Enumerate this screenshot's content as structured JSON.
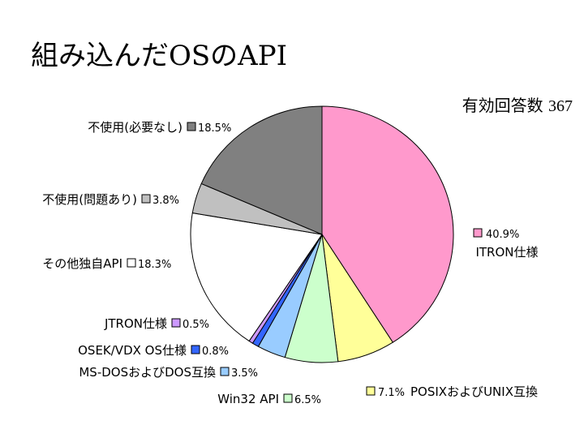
{
  "chart_data": {
    "type": "pie",
    "title": "組み込んだOSのAPI",
    "subtitle": "有効回答数 367",
    "legend": "inline-labels",
    "slices": [
      {
        "label": "ITRON仕様",
        "value": 40.9,
        "value_label": "40.9%",
        "color": "#ff99cc"
      },
      {
        "label": "POSIXおよびUNIX互換",
        "value": 7.1,
        "value_label": "7.1%",
        "color": "#ffff99"
      },
      {
        "label": "Win32 API",
        "value": 6.5,
        "value_label": "6.5%",
        "color": "#ccffcc"
      },
      {
        "label": "MS-DOSおよびDOS互換",
        "value": 3.5,
        "value_label": "3.5%",
        "color": "#99ccff"
      },
      {
        "label": "OSEK/VDX OS仕様",
        "value": 0.8,
        "value_label": "0.8%",
        "color": "#3366ff"
      },
      {
        "label": "JTRON仕様",
        "value": 0.5,
        "value_label": "0.5%",
        "color": "#cc99ff"
      },
      {
        "label": "その他独自API",
        "value": 18.3,
        "value_label": "18.3%",
        "color": "#ffffff"
      },
      {
        "label": "不使用(問題あり)",
        "value": 3.8,
        "value_label": "3.8%",
        "color": "#c0c0c0"
      },
      {
        "label": "不使用(必要なし)",
        "value": 18.5,
        "value_label": "18.5%",
        "color": "#808080"
      }
    ]
  },
  "header": {
    "title": "組み込んだOSのAPI",
    "response_label": "有効回答数",
    "response_count": "367"
  }
}
